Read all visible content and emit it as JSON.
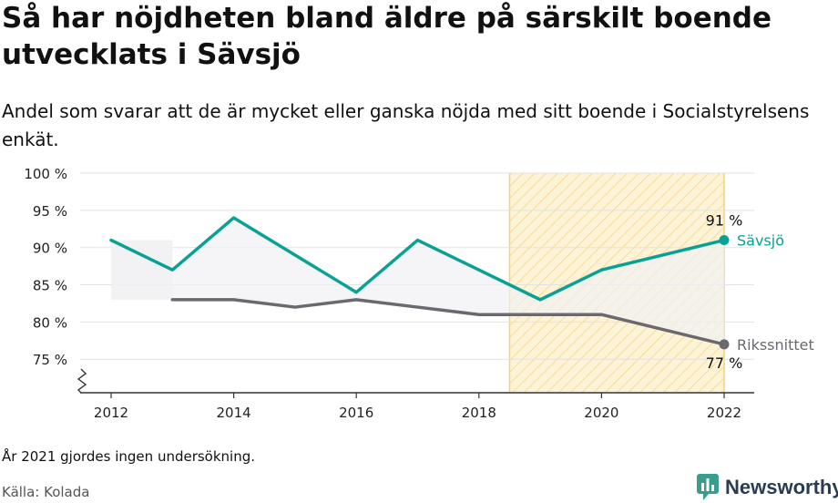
{
  "header": {
    "title": "Så har nöjdheten bland äldre på särskilt boende utvecklats i Sävsjö",
    "subtitle": "Andel som svarar att de är mycket eller ganska nöjda med sitt boende i Socialstyrelsens enkät."
  },
  "footer": {
    "note": "År 2021 gjordes ingen undersökning.",
    "source": "Källa: Kolada",
    "brand": "Newsworthy",
    "brand_icon": "newsworthy-logo-icon"
  },
  "chart_data": {
    "type": "line",
    "x": [
      2012,
      2013,
      2014,
      2015,
      2016,
      2017,
      2018,
      2019,
      2020,
      2022
    ],
    "xlim": [
      2011.5,
      2022.5
    ],
    "xticks": [
      2012,
      2014,
      2016,
      2018,
      2020,
      2022
    ],
    "xtick_labels": [
      "2012",
      "2014",
      "2016",
      "2018",
      "2020",
      "2022"
    ],
    "ylim": [
      70.5,
      100
    ],
    "yticks": [
      75,
      80,
      85,
      90,
      95,
      100
    ],
    "ytick_labels": [
      "75 %",
      "80 %",
      "85 %",
      "90 %",
      "95 %",
      "100 %"
    ],
    "y_axis_break": true,
    "grid": true,
    "highlight_range": [
      2018.5,
      2022
    ],
    "series": [
      {
        "name": "Sävsjö",
        "color": "#0aa195",
        "x": [
          2012,
          2013,
          2014,
          2015,
          2016,
          2017,
          2018,
          2019,
          2020,
          2022
        ],
        "values": [
          91,
          87,
          94,
          89,
          84,
          91,
          87,
          83,
          87,
          91
        ],
        "end_label": "91 %"
      },
      {
        "name": "Rikssnittet",
        "color": "#6b686f",
        "x": [
          2013,
          2014,
          2015,
          2016,
          2017,
          2018,
          2019,
          2020,
          2022
        ],
        "values": [
          83,
          83,
          82,
          83,
          82,
          81,
          81,
          81,
          77
        ],
        "end_label": "77 %"
      }
    ],
    "colors": {
      "highlight_fill": "#fdf3d6",
      "highlight_hatch": "#f6d27a",
      "band_fill": "#f1f1f3",
      "grid": "#e2e2e2",
      "axis": "#333333"
    }
  }
}
